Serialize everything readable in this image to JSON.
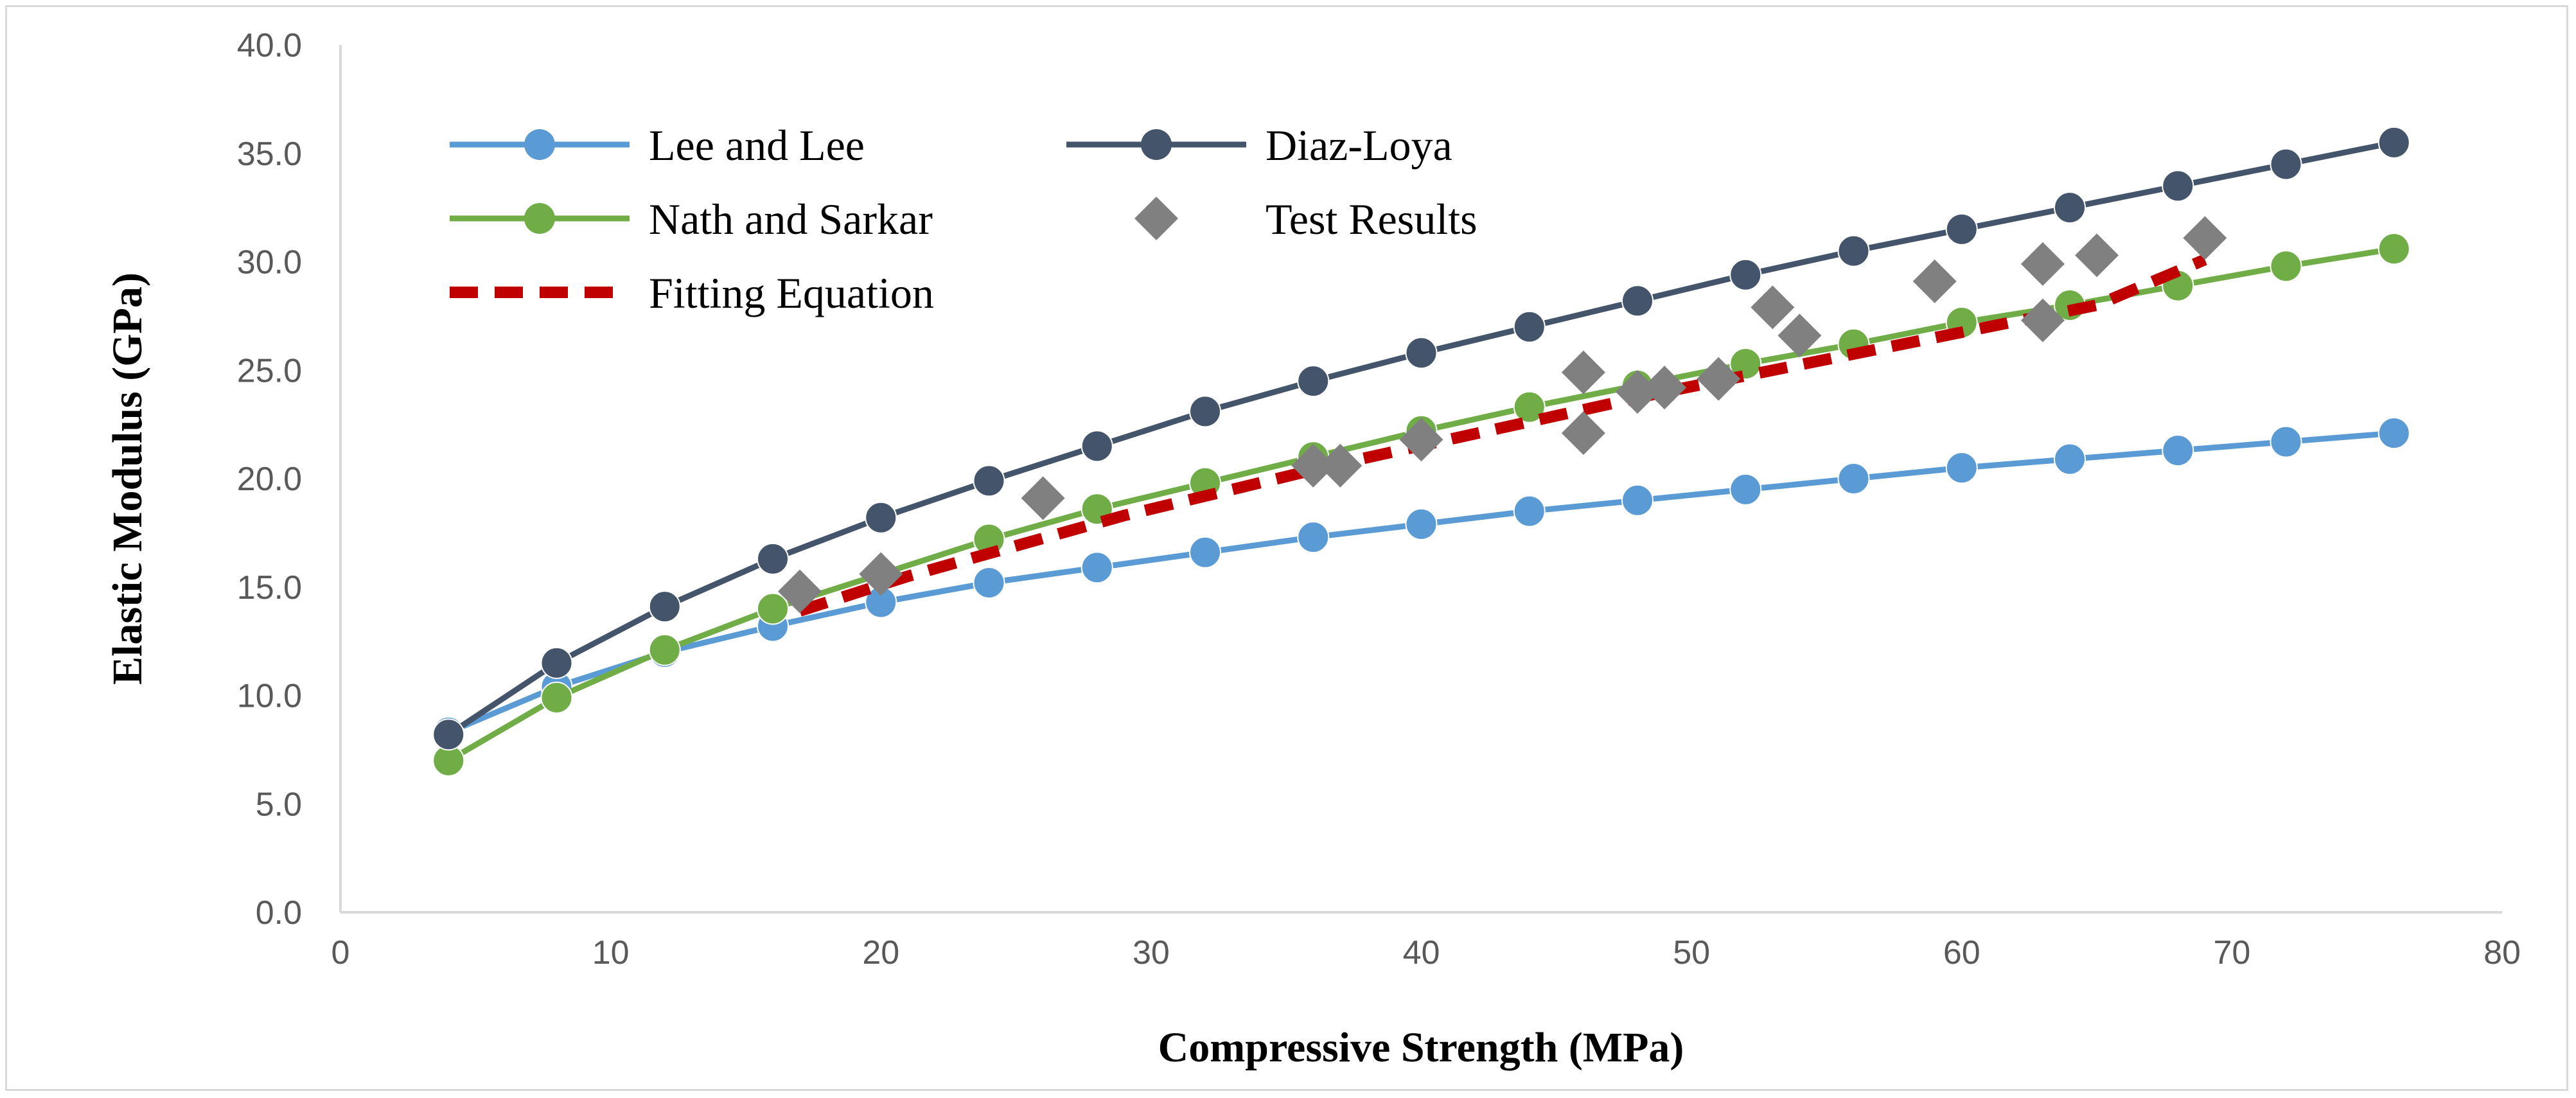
{
  "chart_data": {
    "type": "line",
    "xlabel": "Compressive Strength (MPa)",
    "ylabel": "Elastic Modulus (GPa)",
    "xlim": [
      0,
      80
    ],
    "ylim": [
      0,
      40
    ],
    "x_ticks": [
      "0",
      "10",
      "20",
      "30",
      "40",
      "50",
      "60",
      "70",
      "80"
    ],
    "y_ticks": [
      "0.0",
      "5.0",
      "10.0",
      "15.0",
      "20.0",
      "25.0",
      "30.0",
      "35.0",
      "40.0"
    ],
    "grid": false,
    "legend_placement": "top-left",
    "series": [
      {
        "name": "Lee and Lee",
        "kind": "line-marker",
        "color": "#5b9bd5",
        "x": [
          4,
          8,
          12,
          16,
          20,
          24,
          28,
          32,
          36,
          40,
          44,
          48,
          52,
          56,
          60,
          64,
          68,
          72,
          76
        ],
        "y": [
          8.3,
          10.4,
          12.0,
          13.2,
          14.3,
          15.2,
          15.9,
          16.6,
          17.3,
          17.9,
          18.5,
          19.0,
          19.5,
          20.0,
          20.5,
          20.9,
          21.3,
          21.7,
          22.1
        ]
      },
      {
        "name": "Diaz-Loya",
        "kind": "line-marker",
        "color": "#44546a",
        "x": [
          4,
          8,
          12,
          16,
          20,
          24,
          28,
          32,
          36,
          40,
          44,
          48,
          52,
          56,
          60,
          64,
          68,
          72,
          76
        ],
        "y": [
          8.2,
          11.5,
          14.1,
          16.3,
          18.2,
          19.9,
          21.5,
          23.1,
          24.5,
          25.8,
          27.0,
          28.2,
          29.4,
          30.5,
          31.5,
          32.5,
          33.5,
          34.5,
          35.5
        ]
      },
      {
        "name": "Nath and Sarkar",
        "kind": "line-marker",
        "color": "#70ad47",
        "x": [
          4,
          8,
          12,
          16,
          20,
          24,
          28,
          32,
          36,
          40,
          44,
          48,
          52,
          56,
          60,
          64,
          68,
          72,
          76
        ],
        "y": [
          7.0,
          9.9,
          12.1,
          14.0,
          15.6,
          17.2,
          18.6,
          19.8,
          21.0,
          22.2,
          23.3,
          24.3,
          25.3,
          26.2,
          27.2,
          28.0,
          28.9,
          29.8,
          30.6
        ]
      },
      {
        "name": "Test Results",
        "kind": "scatter",
        "color": "#808080",
        "x": [
          17,
          20,
          26,
          36,
          37,
          40,
          46,
          46,
          48,
          49,
          51,
          53,
          54,
          59,
          63,
          63,
          65,
          69
        ],
        "y": [
          14.8,
          15.6,
          19.1,
          20.6,
          20.6,
          21.8,
          24.9,
          22.1,
          24.0,
          24.2,
          24.6,
          27.9,
          26.6,
          29.1,
          27.3,
          29.9,
          30.3,
          31.1
        ]
      },
      {
        "name": "Fitting Equation",
        "kind": "dashed-line",
        "color": "#c00000",
        "x": [
          17,
          21,
          25,
          29,
          33,
          37,
          41,
          45,
          49,
          53,
          57,
          61,
          65,
          69
        ],
        "y": [
          13.9,
          15.5,
          16.9,
          18.3,
          19.5,
          20.7,
          21.8,
          22.9,
          24.0,
          25.0,
          26.0,
          27.0,
          28.0,
          30.1
        ]
      }
    ]
  }
}
